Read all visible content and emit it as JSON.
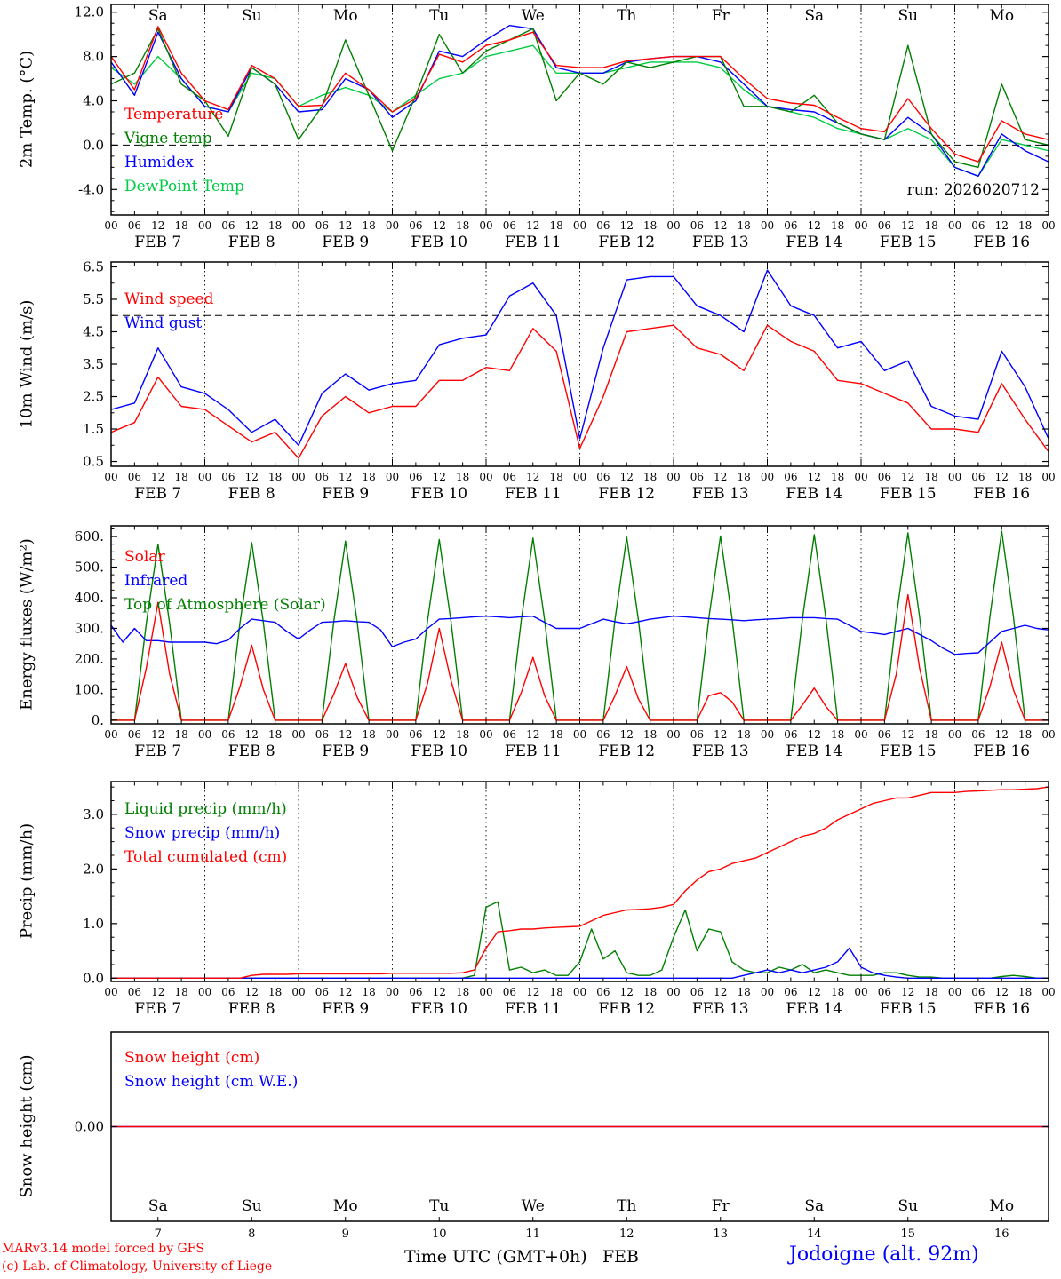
{
  "meta": {
    "run_label": "run: 2026020712",
    "credit1": "MARv3.14 model forced by GFS",
    "credit2": "(c) Lab. of Climatology, University of Liege",
    "xaxis_title": "Time UTC (GMT+0h)",
    "month": "FEB",
    "station": "Jodoigne (alt. 92m)"
  },
  "colors": {
    "red": "#ff0000",
    "blue": "#0000ff",
    "green_dark": "#007f00",
    "green_light": "#00cc44",
    "black": "#000000"
  },
  "hour_labels": [
    "00",
    "06",
    "12",
    "18"
  ],
  "days": [
    {
      "name": "Sa",
      "date": 7,
      "weekend": true
    },
    {
      "name": "Su",
      "date": 8,
      "weekend": true
    },
    {
      "name": "Mo",
      "date": 9,
      "weekend": false
    },
    {
      "name": "Tu",
      "date": 10,
      "weekend": false
    },
    {
      "name": "We",
      "date": 11,
      "weekend": false
    },
    {
      "name": "Th",
      "date": 12,
      "weekend": false
    },
    {
      "name": "Fr",
      "date": 13,
      "weekend": false
    },
    {
      "name": "Sa",
      "date": 14,
      "weekend": true
    },
    {
      "name": "Su",
      "date": 15,
      "weekend": true
    },
    {
      "name": "Mo",
      "date": 16,
      "weekend": false
    }
  ],
  "chart_data": [
    {
      "type": "line",
      "ylabel": "2m Temp. (°C)",
      "ylim": [
        -6.3,
        12.7
      ],
      "yticks": [
        {
          "v": 12,
          "label": "12.0"
        },
        {
          "v": 8,
          "label": "8.0"
        },
        {
          "v": 4,
          "label": "4.0"
        },
        {
          "v": 0,
          "label": "0.0"
        },
        {
          "v": -4,
          "label": "-4.0"
        }
      ],
      "yminor": 1,
      "ref_lines": [
        0
      ],
      "xlim_hours": [
        0,
        240
      ],
      "draw_order": [
        3,
        2,
        1,
        0
      ],
      "series": [
        {
          "name": "Temperature",
          "color": "#ff0000",
          "step_hours": 6,
          "values": [
            8.0,
            5.0,
            10.7,
            6.5,
            4.0,
            3.2,
            7.2,
            6.0,
            3.5,
            3.6,
            6.5,
            5.0,
            3.0,
            4.2,
            8.2,
            7.5,
            9.0,
            9.5,
            10.2,
            7.2,
            7.0,
            7.0,
            7.6,
            7.8,
            8.0,
            8.0,
            8.0,
            6.0,
            4.2,
            3.8,
            3.6,
            2.5,
            1.5,
            1.2,
            4.2,
            1.5,
            -0.8,
            -1.5,
            2.2,
            1.0,
            0.5
          ]
        },
        {
          "name": "Vigne temp",
          "color": "#007f00",
          "step_hours": 6,
          "values": [
            5.5,
            6.5,
            10.5,
            5.5,
            4.0,
            0.8,
            7.0,
            5.5,
            0.5,
            3.5,
            9.5,
            4.5,
            -0.5,
            4.5,
            10.0,
            6.5,
            8.5,
            9.5,
            10.5,
            4.0,
            6.5,
            5.5,
            7.5,
            7.0,
            7.5,
            8.0,
            8.0,
            3.5,
            3.5,
            3.0,
            4.5,
            2.0,
            1.0,
            0.5,
            9.0,
            1.0,
            -1.5,
            -2.0,
            5.5,
            0.5,
            0.0
          ]
        },
        {
          "name": "Humidex",
          "color": "#0000ff",
          "step_hours": 6,
          "values": [
            7.5,
            4.5,
            10.2,
            6.0,
            3.5,
            3.0,
            7.0,
            5.5,
            3.0,
            3.2,
            6.0,
            5.0,
            2.5,
            4.0,
            8.5,
            8.0,
            9.5,
            10.8,
            10.5,
            7.0,
            6.5,
            6.5,
            7.5,
            7.8,
            8.0,
            8.0,
            7.5,
            5.5,
            3.5,
            3.2,
            3.0,
            2.0,
            1.0,
            0.5,
            2.5,
            1.0,
            -2.0,
            -2.8,
            1.0,
            -0.5,
            -1.5
          ]
        },
        {
          "name": "DewPoint Temp",
          "color": "#00cc44",
          "step_hours": 6,
          "values": [
            7.0,
            5.5,
            8.0,
            6.0,
            3.5,
            3.0,
            6.5,
            6.0,
            3.5,
            4.5,
            5.2,
            4.5,
            3.0,
            4.5,
            6.0,
            6.5,
            8.0,
            8.5,
            9.0,
            6.5,
            6.5,
            6.5,
            7.0,
            7.5,
            7.5,
            7.5,
            7.0,
            5.0,
            3.5,
            3.0,
            2.5,
            1.5,
            1.0,
            0.5,
            1.5,
            0.5,
            -2.0,
            -2.8,
            0.5,
            0.0,
            -0.5
          ]
        }
      ]
    },
    {
      "type": "line",
      "ylabel": "10m Wind (m/s)",
      "ylim": [
        0.35,
        6.65
      ],
      "yticks": [
        {
          "v": 6.5,
          "label": "6.5"
        },
        {
          "v": 5.5,
          "label": "5.5"
        },
        {
          "v": 4.5,
          "label": "4.5"
        },
        {
          "v": 3.5,
          "label": "3.5"
        },
        {
          "v": 2.5,
          "label": "2.5"
        },
        {
          "v": 1.5,
          "label": "1.5"
        },
        {
          "v": 0.5,
          "label": "0.5"
        }
      ],
      "yminor": 0.5,
      "ref_lines": [
        5.0
      ],
      "xlim_hours": [
        0,
        240
      ],
      "draw_order": [
        1,
        0
      ],
      "series": [
        {
          "name": "Wind speed",
          "color": "#ff0000",
          "step_hours": 6,
          "values": [
            1.4,
            1.7,
            3.1,
            2.2,
            2.1,
            1.6,
            1.1,
            1.4,
            0.6,
            1.9,
            2.5,
            2.0,
            2.2,
            2.2,
            3.0,
            3.0,
            3.4,
            3.3,
            4.6,
            3.9,
            0.9,
            2.5,
            4.5,
            4.6,
            4.7,
            4.0,
            3.8,
            3.3,
            4.7,
            4.2,
            3.9,
            3.0,
            2.9,
            2.6,
            2.3,
            1.5,
            1.5,
            1.4,
            2.9,
            1.8,
            0.8
          ]
        },
        {
          "name": "Wind gust",
          "color": "#0000ff",
          "step_hours": 6,
          "values": [
            2.1,
            2.3,
            4.0,
            2.8,
            2.6,
            2.1,
            1.4,
            1.8,
            1.0,
            2.6,
            3.2,
            2.7,
            2.9,
            3.0,
            4.1,
            4.3,
            4.4,
            5.6,
            6.0,
            5.0,
            1.2,
            4.0,
            6.1,
            6.2,
            6.2,
            5.3,
            5.0,
            4.5,
            6.4,
            5.3,
            5.0,
            4.0,
            4.2,
            3.3,
            3.6,
            2.2,
            1.9,
            1.8,
            3.9,
            2.8,
            1.2
          ]
        }
      ]
    },
    {
      "type": "line",
      "ylabel": "Energy fluxes (W/m²)",
      "ylim": [
        -12,
        635
      ],
      "yticks": [
        {
          "v": 600,
          "label": "600."
        },
        {
          "v": 500,
          "label": "500."
        },
        {
          "v": 400,
          "label": "400."
        },
        {
          "v": 300,
          "label": "300."
        },
        {
          "v": 200,
          "label": "200."
        },
        {
          "v": 100,
          "label": "100."
        },
        {
          "v": 0,
          "label": "0."
        }
      ],
      "yminor": 25,
      "ref_lines": [],
      "xlim_hours": [
        0,
        240
      ],
      "draw_order": [
        2,
        1,
        0
      ],
      "series": [
        {
          "name": "Solar",
          "color": "#ff0000",
          "step_hours": 3,
          "values": [
            0,
            0,
            0,
            170,
            385,
            150,
            0,
            0,
            0,
            0,
            0,
            110,
            245,
            100,
            0,
            0,
            0,
            0,
            0,
            85,
            185,
            75,
            0,
            0,
            0,
            0,
            0,
            120,
            300,
            130,
            0,
            0,
            0,
            0,
            0,
            90,
            205,
            80,
            0,
            0,
            0,
            0,
            0,
            80,
            175,
            70,
            0,
            0,
            0,
            0,
            0,
            80,
            90,
            60,
            0,
            0,
            0,
            0,
            0,
            50,
            105,
            45,
            0,
            0,
            0,
            0,
            0,
            150,
            410,
            170,
            0,
            0,
            0,
            0,
            0,
            110,
            255,
            100,
            0,
            0,
            0
          ]
        },
        {
          "name": "Infrared",
          "color": "#0000ff",
          "step_hours": 3,
          "values": [
            310,
            255,
            300,
            260,
            260,
            255,
            255,
            255,
            255,
            250,
            262,
            300,
            330,
            325,
            320,
            290,
            265,
            295,
            320,
            322,
            325,
            322,
            320,
            295,
            240,
            255,
            265,
            300,
            330,
            332,
            335,
            338,
            340,
            338,
            335,
            338,
            340,
            320,
            300,
            300,
            300,
            315,
            330,
            322,
            315,
            322,
            330,
            335,
            340,
            338,
            335,
            332,
            330,
            328,
            325,
            328,
            330,
            332,
            335,
            335,
            335,
            332,
            330,
            310,
            290,
            285,
            280,
            290,
            300,
            280,
            260,
            235,
            215,
            218,
            220,
            255,
            290,
            300,
            310,
            300,
            295
          ]
        },
        {
          "name": "Top of Atmosphere (Solar)",
          "color": "#007f00",
          "step_hours": 3,
          "values": [
            0,
            0,
            0,
            316,
            575,
            316,
            0,
            0,
            0,
            0,
            0,
            319,
            580,
            319,
            0,
            0,
            0,
            0,
            0,
            322,
            585,
            322,
            0,
            0,
            0,
            0,
            0,
            325,
            590,
            325,
            0,
            0,
            0,
            0,
            0,
            327,
            595,
            327,
            0,
            0,
            0,
            0,
            0,
            329,
            598,
            329,
            0,
            0,
            0,
            0,
            0,
            331,
            602,
            331,
            0,
            0,
            0,
            0,
            0,
            333,
            606,
            333,
            0,
            0,
            0,
            0,
            0,
            337,
            612,
            337,
            0,
            0,
            0,
            0,
            0,
            340,
            618,
            340,
            0,
            0,
            0
          ]
        }
      ]
    },
    {
      "type": "line",
      "ylabel": "Precip (mm/h)",
      "ylim": [
        -0.06,
        3.6
      ],
      "yticks": [
        {
          "v": 3,
          "label": "3.0"
        },
        {
          "v": 2,
          "label": "2.0"
        },
        {
          "v": 1,
          "label": "1.0"
        },
        {
          "v": 0,
          "label": "0.0"
        }
      ],
      "yminor": 0.25,
      "ref_lines": [],
      "xlim_hours": [
        0,
        240
      ],
      "draw_order": [
        0,
        1,
        2
      ],
      "series": [
        {
          "name": "Liquid precip (mm/h)",
          "color": "#007f00",
          "step_hours": 3,
          "values": [
            0,
            0,
            0,
            0,
            0,
            0,
            0,
            0,
            0,
            0,
            0,
            0,
            0,
            0,
            0,
            0,
            0,
            0,
            0,
            0,
            0,
            0,
            0,
            0,
            0,
            0,
            0,
            0,
            0,
            0,
            0,
            0.05,
            1.3,
            1.4,
            0.15,
            0.2,
            0.1,
            0.15,
            0.05,
            0.05,
            0.3,
            0.9,
            0.35,
            0.5,
            0.1,
            0.05,
            0.05,
            0.15,
            0.75,
            1.25,
            0.5,
            0.9,
            0.85,
            0.3,
            0.15,
            0.1,
            0.1,
            0.2,
            0.15,
            0.25,
            0.1,
            0.15,
            0.1,
            0.05,
            0.05,
            0.05,
            0.1,
            0.1,
            0.05,
            0.02,
            0.02,
            0,
            0,
            0,
            0,
            0,
            0.03,
            0.05,
            0.03,
            0,
            0
          ]
        },
        {
          "name": "Snow precip (mm/h)",
          "color": "#0000ff",
          "step_hours": 3,
          "values": [
            0,
            0,
            0,
            0,
            0,
            0,
            0,
            0,
            0,
            0,
            0,
            0,
            0,
            0,
            0,
            0,
            0,
            0,
            0,
            0,
            0,
            0,
            0,
            0,
            0,
            0,
            0,
            0,
            0,
            0,
            0,
            0,
            0,
            0,
            0,
            0,
            0,
            0,
            0,
            0,
            0,
            0,
            0,
            0,
            0,
            0,
            0,
            0,
            0,
            0,
            0,
            0,
            0,
            0,
            0.05,
            0.1,
            0.15,
            0.1,
            0.15,
            0.1,
            0.15,
            0.2,
            0.3,
            0.55,
            0.2,
            0.1,
            0.05,
            0.02,
            0,
            0,
            0,
            0,
            0,
            0,
            0,
            0,
            0,
            0,
            0,
            0,
            0
          ]
        },
        {
          "name": "Total cumulated (cm)",
          "color": "#ff0000",
          "step_hours": 3,
          "values": [
            0,
            0,
            0,
            0,
            0,
            0,
            0,
            0,
            0,
            0,
            0,
            0,
            0.05,
            0.07,
            0.07,
            0.07,
            0.08,
            0.08,
            0.08,
            0.08,
            0.08,
            0.08,
            0.08,
            0.08,
            0.09,
            0.09,
            0.09,
            0.09,
            0.09,
            0.09,
            0.1,
            0.15,
            0.55,
            0.85,
            0.87,
            0.9,
            0.9,
            0.92,
            0.93,
            0.94,
            0.95,
            1.05,
            1.15,
            1.2,
            1.25,
            1.26,
            1.27,
            1.3,
            1.35,
            1.6,
            1.8,
            1.95,
            2.0,
            2.1,
            2.15,
            2.2,
            2.3,
            2.4,
            2.5,
            2.6,
            2.65,
            2.75,
            2.9,
            3.0,
            3.1,
            3.2,
            3.25,
            3.3,
            3.3,
            3.35,
            3.4,
            3.4,
            3.4,
            3.42,
            3.43,
            3.44,
            3.45,
            3.45,
            3.46,
            3.47,
            3.5
          ]
        }
      ]
    },
    {
      "type": "line",
      "ylabel": "Snow height (cm)",
      "ylim": [
        -1.4,
        1.4
      ],
      "yticks": [
        {
          "v": 0,
          "label": "0.00"
        }
      ],
      "ref_lines": [],
      "xlim_hours": [
        0,
        240
      ],
      "draw_order": [
        1,
        0
      ],
      "series": [
        {
          "name": "Snow height (cm)",
          "color": "#ff0000",
          "step_hours": 240,
          "values": [
            0,
            0
          ]
        },
        {
          "name": "Snow height (cm W.E.)",
          "color": "#0000ff",
          "step_hours": 240,
          "values": [
            0,
            0
          ]
        }
      ]
    }
  ]
}
